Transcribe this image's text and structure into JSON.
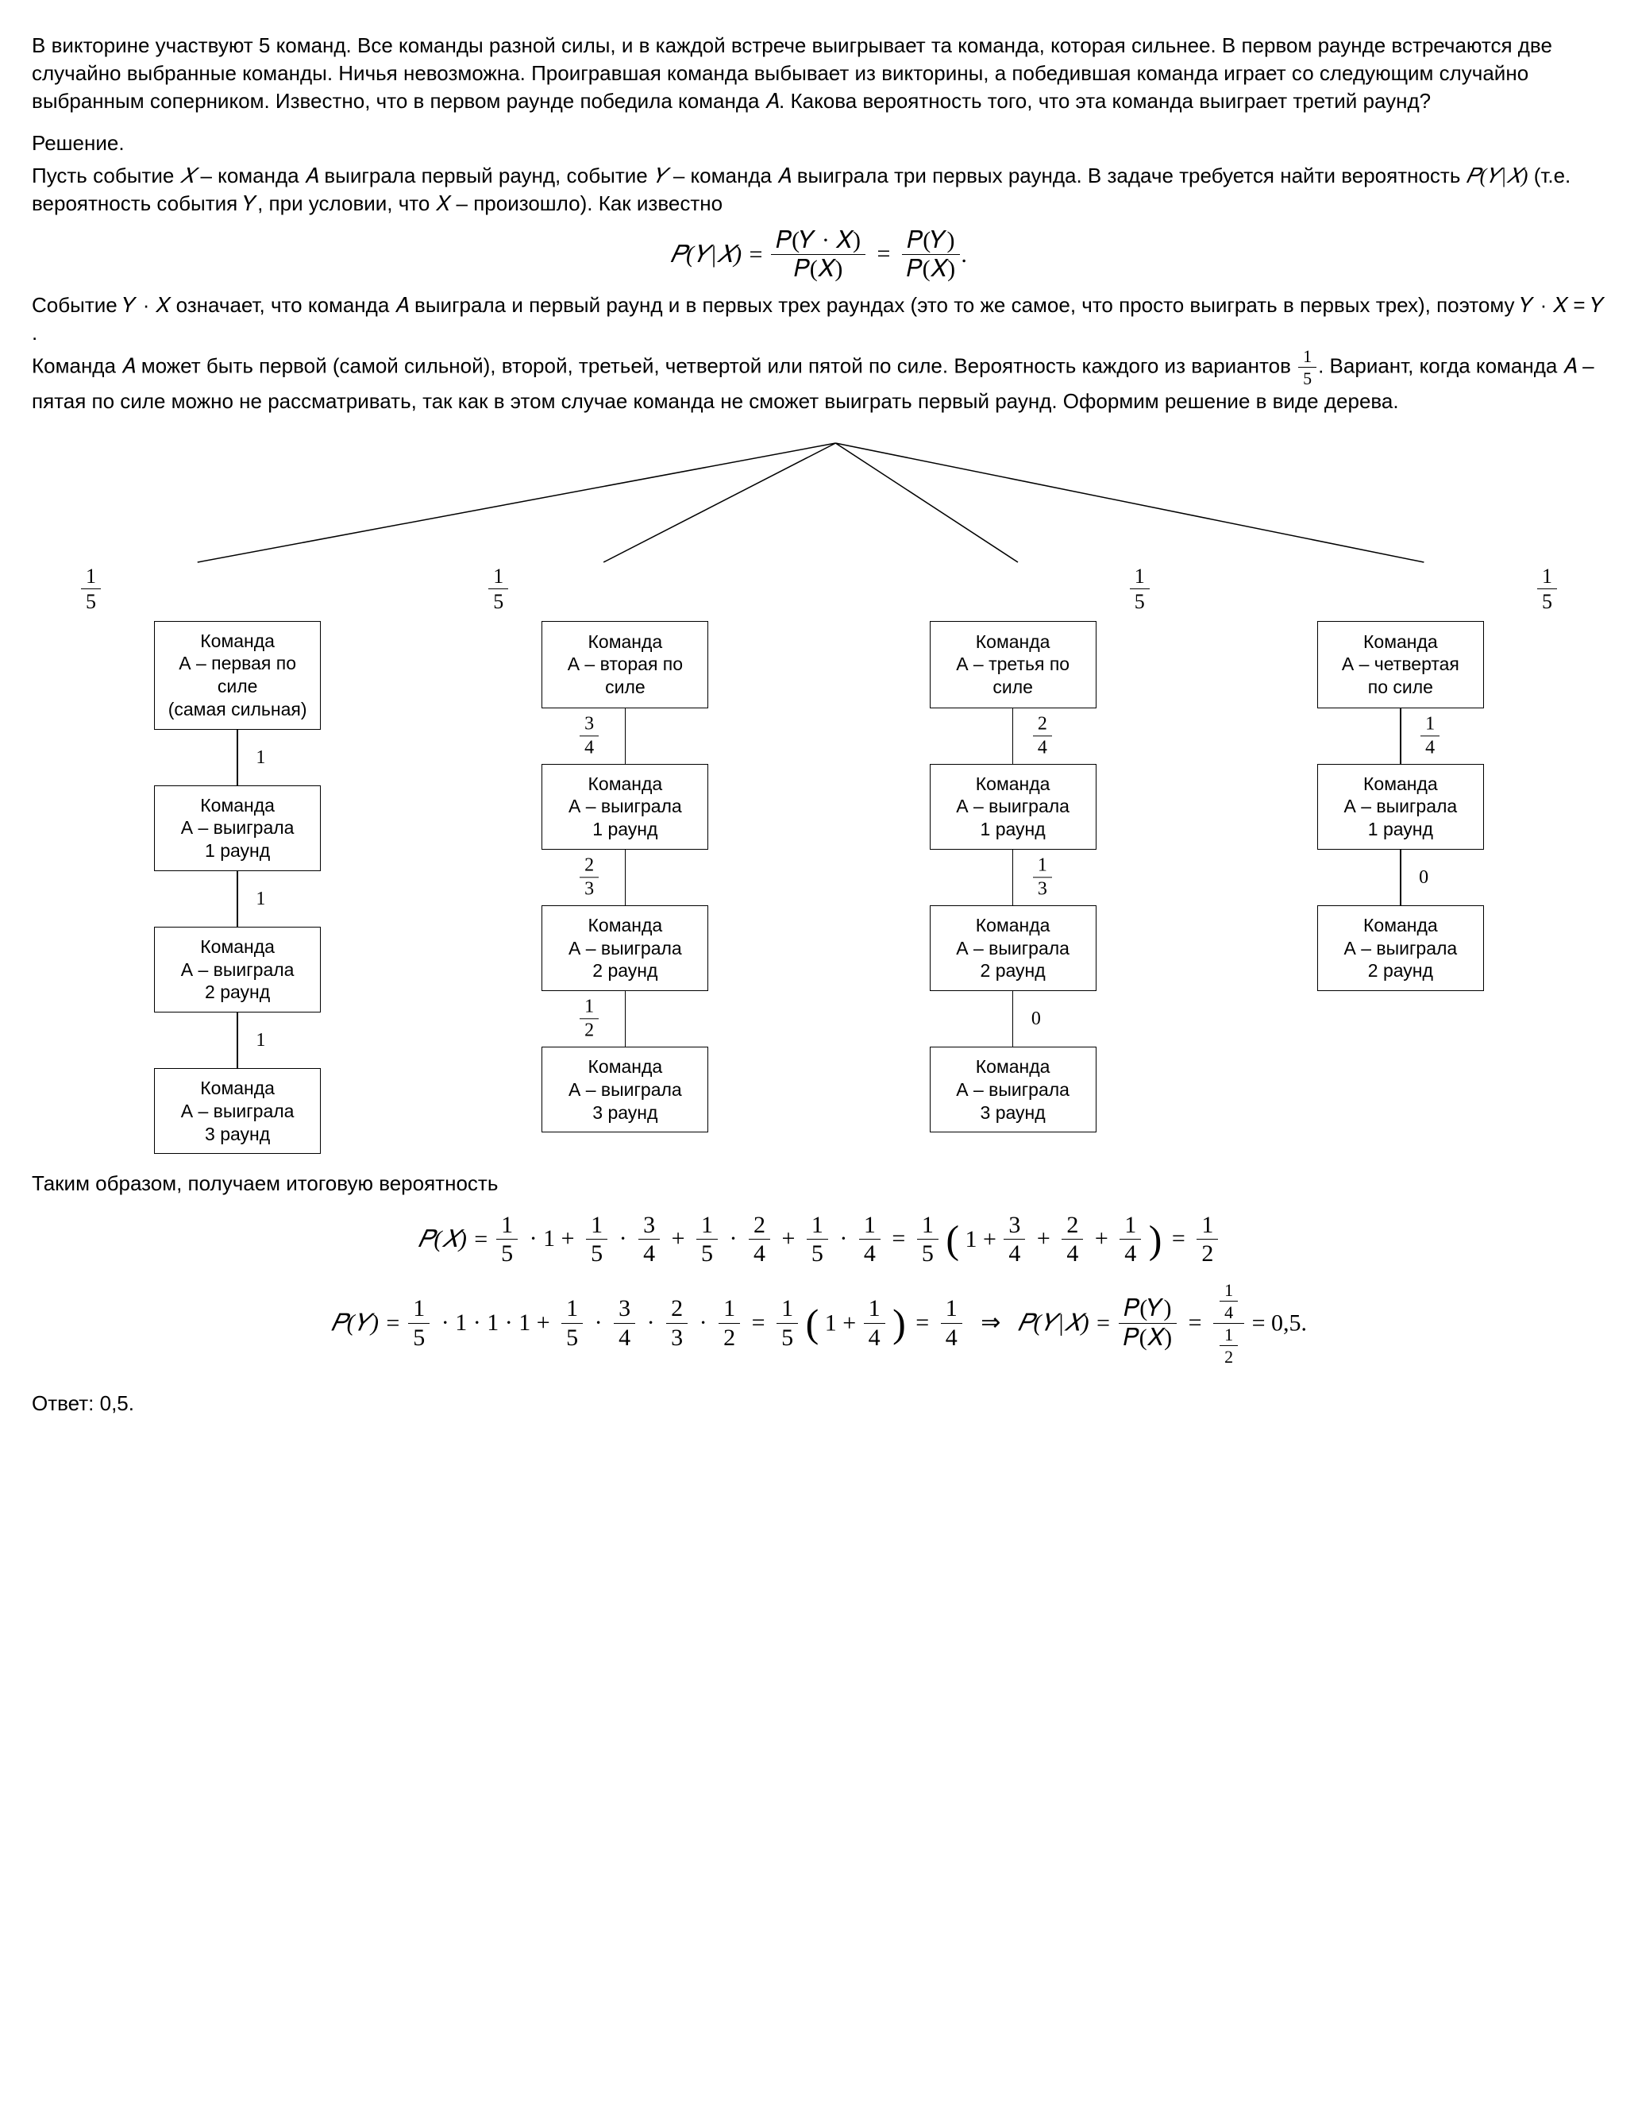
{
  "problem": "В викторине участвуют 5 команд. Все команды разной силы, и в каждой встрече выигрывает та команда, которая сильнее. В первом раунде встречаются две случайно выбранные команды. Ничья невозможна. Проигравшая команда выбывает из викторины, а победившая команда играет со следующим случайно выбранным соперником. Известно, что в первом раунде победила команда 𝐴. Какова вероятность того, что эта команда выиграет третий раунд?",
  "solution_label": "Решение.",
  "para1a": "Пусть событие ",
  "X": "𝑋",
  "para1b": " – команда 𝐴 выиграла первый раунд, событие ",
  "Y": "𝑌",
  "para1c": " – команда 𝐴 выиграла три первых раунда. В задаче требуется найти вероятность ",
  "pyx": "𝑃(𝑌|𝑋)",
  "para1d": " (т.е. вероятность события 𝑌, при условии, что 𝑋 – произошло). Как известно",
  "formula1_lhs": "𝑃(𝑌|𝑋) =",
  "formula1_f1_nu": "𝑃(𝑌 · 𝑋)",
  "formula1_f1_de": "𝑃(𝑋)",
  "formula1_mid": "=",
  "formula1_f2_nu": "𝑃(𝑌)",
  "formula1_f2_de": "𝑃(𝑋)",
  "formula1_end": ".",
  "para2": "Событие 𝑌 · 𝑋 означает, что команда 𝐴 выиграла и первый раунд и в первых трех раундах (это то же самое, что просто выиграть в первых трех), поэтому 𝑌 · 𝑋 = 𝑌 .",
  "para3a": "Команда 𝐴 может быть первой (самой сильной), второй, третьей, четвертой или пятой по силе. Вероятность каждого из вариантов ",
  "para3b": ". Вариант, когда команда 𝐴 –  пятая по силе можно не рассматривать, так как в этом случае команда не сможет выиграть первый раунд. Оформим решение в виде дерева.",
  "tree": {
    "root_prob": [
      "1",
      "5"
    ],
    "branches": [
      {
        "top_nu": "1",
        "top_de": "5",
        "lvl0": "Команда\nА – первая по силе\n(самая сильная)",
        "e01": "1",
        "lvl1": "Команда\nА – выиграла\n1 раунд",
        "e12": "1",
        "lvl2": "Команда\nА – выиграла\n2 раунд",
        "e23": "1",
        "lvl3": "Команда\nА – выиграла\n3 раунд"
      },
      {
        "top_nu": "1",
        "top_de": "5",
        "lvl0": "Команда\nА – вторая по\nсиле",
        "e01_nu": "3",
        "e01_de": "4",
        "lvl1": "Команда\nА – выиграла\n1 раунд",
        "e12_nu": "2",
        "e12_de": "3",
        "lvl2": "Команда\nА – выиграла\n2 раунд",
        "e23_nu": "1",
        "e23_de": "2",
        "lvl3": "Команда\nА – выиграла\n3 раунд"
      },
      {
        "top_nu": "1",
        "top_de": "5",
        "lvl0": "Команда\nА – третья по\nсиле",
        "e01_nu": "2",
        "e01_de": "4",
        "lvl1": "Команда\nА – выиграла\n1 раунд",
        "e12_nu": "1",
        "e12_de": "3",
        "lvl2": "Команда\nА – выиграла\n2 раунд",
        "e23": "0",
        "lvl3": "Команда\nА – выиграла\n3 раунд"
      },
      {
        "top_nu": "1",
        "top_de": "5",
        "lvl0": "Команда\nА – четвертая\nпо силе",
        "e01_nu": "1",
        "e01_de": "4",
        "lvl1": "Команда\nА – выиграла\n1 раунд",
        "e12": "0",
        "lvl2": "Команда\nА – выиграла\n2 раунд"
      }
    ]
  },
  "conclude": "Таким образом, получаем итоговую вероятность",
  "px": {
    "lhs": "𝑃(𝑋) =",
    "terms": [
      {
        "a_nu": "1",
        "a_de": "5",
        "op": "· 1 +"
      },
      {
        "a_nu": "1",
        "a_de": "5",
        "op": "·",
        "b_nu": "3",
        "b_de": "4",
        "tail": "+"
      },
      {
        "a_nu": "1",
        "a_de": "5",
        "op": "·",
        "b_nu": "2",
        "b_de": "4",
        "tail": "+"
      },
      {
        "a_nu": "1",
        "a_de": "5",
        "op": "·",
        "b_nu": "1",
        "b_de": "4",
        "tail": "="
      }
    ],
    "fact_nu": "1",
    "fact_de": "5",
    "paren": "1 +",
    "p1_nu": "3",
    "p1_de": "4",
    "p2_nu": "2",
    "p2_de": "4",
    "p3_nu": "1",
    "p3_de": "4",
    "eq_res_nu": "1",
    "eq_res_de": "2"
  },
  "py": {
    "lhs": "𝑃(𝑌) =",
    "t1_nu": "1",
    "t1_de": "5",
    "t1_tail": "· 1 · 1 · 1 +",
    "t2a_nu": "1",
    "t2a_de": "5",
    "t2b_nu": "3",
    "t2b_de": "4",
    "t2c_nu": "2",
    "t2c_de": "3",
    "t2d_nu": "1",
    "t2d_de": "2",
    "mid": "=",
    "f_nu": "1",
    "f_de": "5",
    "paren_one": "1 +",
    "pp_nu": "1",
    "pp_de": "4",
    "res_nu": "1",
    "res_de": "4",
    "arrow": "⇒",
    "cond": "𝑃(𝑌|𝑋) =",
    "cond_top_nu": "𝑃(𝑌)",
    "cond_top_de": "𝑃(𝑋)",
    "big_top_nu": "1",
    "big_top_de": "4",
    "big_bot_nu": "1",
    "big_bot_de": "2",
    "final": "= 0,5."
  },
  "answer_label": "Ответ: 0,5."
}
